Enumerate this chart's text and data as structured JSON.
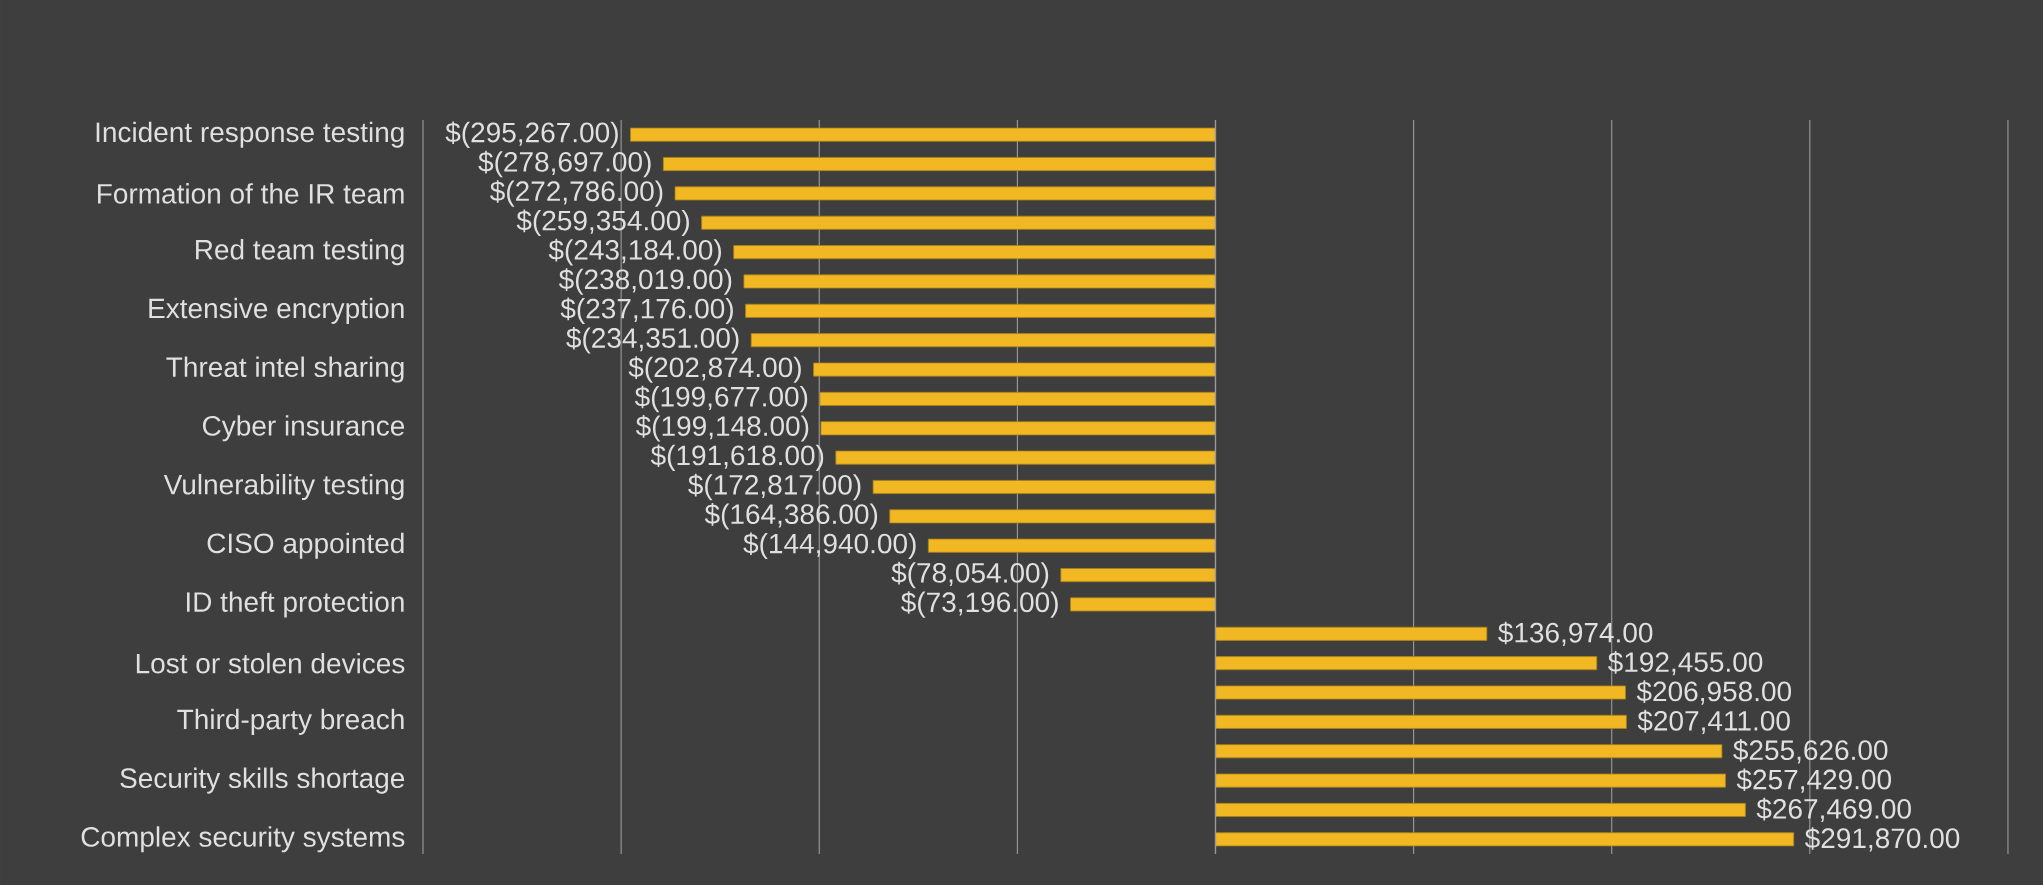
{
  "chart_data": {
    "type": "bar",
    "orientation": "horizontal",
    "categories": [
      "Incident response testing",
      null,
      "Formation of the IR team",
      null,
      "Red team testing",
      null,
      "Extensive encryption",
      null,
      "Threat intel sharing",
      null,
      "Cyber insurance",
      null,
      "Vulnerability testing",
      null,
      "CISO appointed",
      null,
      "ID theft protection",
      null,
      "Lost or stolen devices",
      null,
      "Third-party breach",
      null,
      "Security skills shortage",
      null,
      "Complex security systems"
    ],
    "values": [
      -295267,
      -278697,
      -272786,
      -259354,
      -243184,
      -238019,
      -237176,
      -234351,
      -202874,
      -199677,
      -199148,
      -191618,
      -172817,
      -164386,
      -144940,
      -78054,
      -73196,
      136974,
      192455,
      206958,
      207411,
      255626,
      257429,
      267469,
      291870
    ],
    "value_labels": [
      "$(295,267.00)",
      "$(278,697.00)",
      "$(272,786.00)",
      "$(259,354.00)",
      "$(243,184.00)",
      "$(238,019.00)",
      "$(237,176.00)",
      "$(234,351.00)",
      "$(202,874.00)",
      "$(199,677.00)",
      "$(199,148.00)",
      "$(191,618.00)",
      "$(172,817.00)",
      "$(164,386.00)",
      "$(144,940.00)",
      "$(78,054.00)",
      "$(73,196.00)",
      "$136,974.00",
      "$192,455.00",
      "$206,958.00",
      "$207,411.00",
      "$255,626.00",
      "$257,429.00",
      "$267,469.00",
      "$291,870.00"
    ],
    "color": "#f2b823",
    "xlim": [
      -400000,
      400000
    ],
    "xticks": [
      {
        "value": -400000,
        "label": null
      },
      {
        "value": -300000,
        "label": null
      },
      {
        "value": -200000,
        "label": null
      },
      {
        "value": -100000,
        "label": null
      },
      {
        "value": 0,
        "label": null
      },
      {
        "value": 100000,
        "label": null
      },
      {
        "value": 200000,
        "label": null
      },
      {
        "value": 300000,
        "label": null
      },
      {
        "value": 400000,
        "label": null
      }
    ],
    "grid": "x",
    "tick_labels": "y"
  }
}
